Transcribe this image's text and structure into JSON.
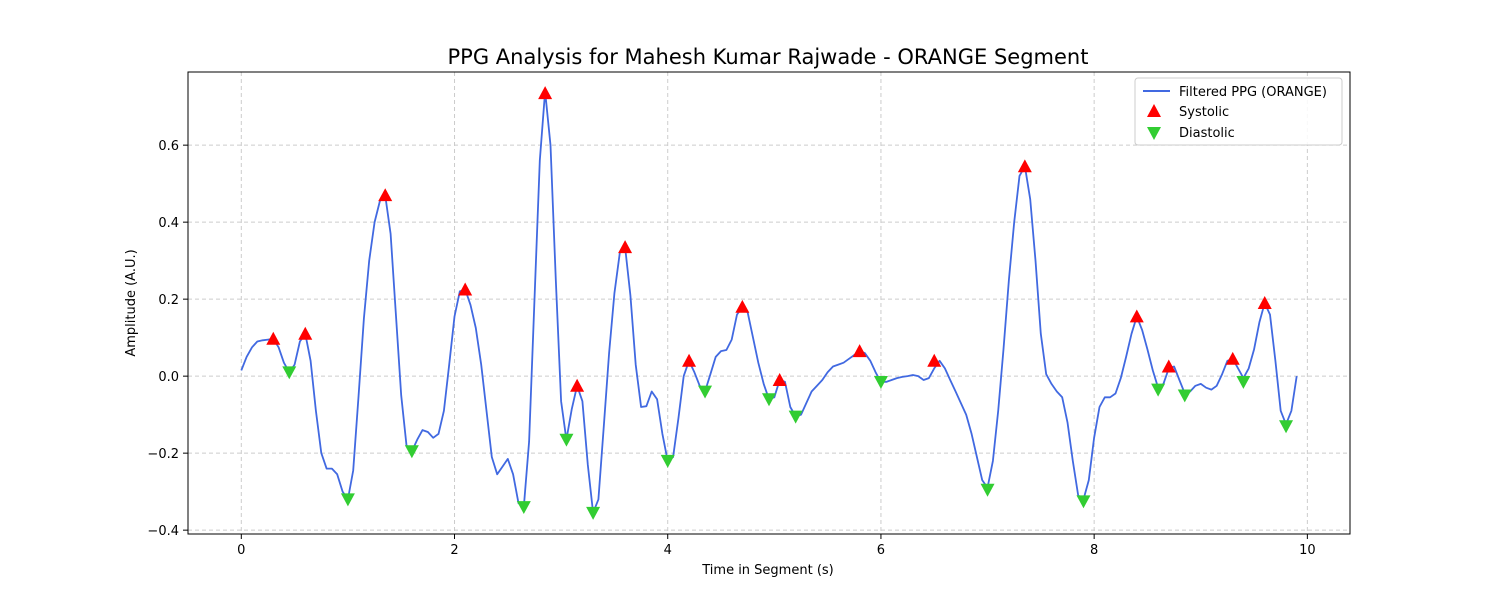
{
  "chart_data": {
    "type": "line",
    "title": "PPG Analysis for Mahesh Kumar Rajwade - ORANGE Segment",
    "xlabel": "Time in Segment (s)",
    "ylabel": "Amplitude (A.U.)",
    "xlim": [
      -0.5,
      10.4
    ],
    "ylim": [
      -0.41,
      0.79
    ],
    "xticks": [
      0,
      2,
      4,
      6,
      8,
      10
    ],
    "yticks": [
      -0.4,
      -0.2,
      0.0,
      0.2,
      0.4,
      0.6
    ],
    "ytick_labels": [
      "−0.4",
      "−0.2",
      "0.0",
      "0.2",
      "0.4",
      "0.6"
    ],
    "grid": true,
    "legend_position": "top-right",
    "colors": {
      "line": "#4169e1",
      "systolic": "#ff0000",
      "diastolic": "#32cd32"
    },
    "series": [
      {
        "name": "Filtered PPG (ORANGE)",
        "kind": "line",
        "points": [
          [
            0.0,
            0.015
          ],
          [
            0.05,
            0.05
          ],
          [
            0.1,
            0.075
          ],
          [
            0.15,
            0.09
          ],
          [
            0.2,
            0.093
          ],
          [
            0.25,
            0.095
          ],
          [
            0.3,
            0.097
          ],
          [
            0.35,
            0.075
          ],
          [
            0.4,
            0.035
          ],
          [
            0.45,
            0.01
          ],
          [
            0.5,
            0.03
          ],
          [
            0.55,
            0.09
          ],
          [
            0.6,
            0.11
          ],
          [
            0.65,
            0.04
          ],
          [
            0.7,
            -0.09
          ],
          [
            0.75,
            -0.2
          ],
          [
            0.8,
            -0.24
          ],
          [
            0.85,
            -0.24
          ],
          [
            0.9,
            -0.255
          ],
          [
            0.95,
            -0.3
          ],
          [
            1.0,
            -0.32
          ],
          [
            1.05,
            -0.245
          ],
          [
            1.1,
            -0.05
          ],
          [
            1.15,
            0.15
          ],
          [
            1.2,
            0.3
          ],
          [
            1.25,
            0.4
          ],
          [
            1.3,
            0.455
          ],
          [
            1.35,
            0.47
          ],
          [
            1.4,
            0.37
          ],
          [
            1.45,
            0.16
          ],
          [
            1.5,
            -0.05
          ],
          [
            1.55,
            -0.18
          ],
          [
            1.6,
            -0.195
          ],
          [
            1.65,
            -0.165
          ],
          [
            1.7,
            -0.14
          ],
          [
            1.75,
            -0.145
          ],
          [
            1.8,
            -0.16
          ],
          [
            1.85,
            -0.15
          ],
          [
            1.9,
            -0.09
          ],
          [
            1.95,
            0.03
          ],
          [
            2.0,
            0.155
          ],
          [
            2.05,
            0.22
          ],
          [
            2.1,
            0.225
          ],
          [
            2.15,
            0.185
          ],
          [
            2.2,
            0.125
          ],
          [
            2.25,
            0.03
          ],
          [
            2.3,
            -0.09
          ],
          [
            2.35,
            -0.21
          ],
          [
            2.4,
            -0.255
          ],
          [
            2.45,
            -0.235
          ],
          [
            2.5,
            -0.215
          ],
          [
            2.55,
            -0.255
          ],
          [
            2.6,
            -0.33
          ],
          [
            2.65,
            -0.34
          ],
          [
            2.7,
            -0.17
          ],
          [
            2.75,
            0.2
          ],
          [
            2.8,
            0.56
          ],
          [
            2.85,
            0.74
          ],
          [
            2.9,
            0.6
          ],
          [
            2.95,
            0.25
          ],
          [
            3.0,
            -0.065
          ],
          [
            3.05,
            -0.165
          ],
          [
            3.1,
            -0.085
          ],
          [
            3.15,
            -0.025
          ],
          [
            3.2,
            -0.065
          ],
          [
            3.25,
            -0.23
          ],
          [
            3.3,
            -0.355
          ],
          [
            3.35,
            -0.32
          ],
          [
            3.4,
            -0.13
          ],
          [
            3.45,
            0.06
          ],
          [
            3.5,
            0.215
          ],
          [
            3.55,
            0.32
          ],
          [
            3.6,
            0.335
          ],
          [
            3.65,
            0.21
          ],
          [
            3.7,
            0.03
          ],
          [
            3.75,
            -0.08
          ],
          [
            3.8,
            -0.078
          ],
          [
            3.85,
            -0.04
          ],
          [
            3.9,
            -0.06
          ],
          [
            3.95,
            -0.15
          ],
          [
            4.0,
            -0.22
          ],
          [
            4.05,
            -0.21
          ],
          [
            4.1,
            -0.11
          ],
          [
            4.15,
            0.0
          ],
          [
            4.2,
            0.04
          ],
          [
            4.25,
            0.01
          ],
          [
            4.3,
            -0.025
          ],
          [
            4.35,
            -0.04
          ],
          [
            4.4,
            0.005
          ],
          [
            4.45,
            0.05
          ],
          [
            4.5,
            0.065
          ],
          [
            4.55,
            0.068
          ],
          [
            4.6,
            0.095
          ],
          [
            4.65,
            0.16
          ],
          [
            4.7,
            0.18
          ],
          [
            4.75,
            0.165
          ],
          [
            4.8,
            0.1
          ],
          [
            4.85,
            0.035
          ],
          [
            4.9,
            -0.02
          ],
          [
            4.95,
            -0.06
          ],
          [
            5.0,
            -0.055
          ],
          [
            5.05,
            -0.01
          ],
          [
            5.1,
            -0.015
          ],
          [
            5.15,
            -0.08
          ],
          [
            5.2,
            -0.105
          ],
          [
            5.25,
            -0.1
          ],
          [
            5.3,
            -0.07
          ],
          [
            5.35,
            -0.04
          ],
          [
            5.4,
            -0.025
          ],
          [
            5.45,
            -0.01
          ],
          [
            5.5,
            0.01
          ],
          [
            5.55,
            0.025
          ],
          [
            5.6,
            0.03
          ],
          [
            5.65,
            0.035
          ],
          [
            5.7,
            0.045
          ],
          [
            5.75,
            0.055
          ],
          [
            5.8,
            0.065
          ],
          [
            5.85,
            0.06
          ],
          [
            5.9,
            0.04
          ],
          [
            5.95,
            0.01
          ],
          [
            6.0,
            -0.015
          ],
          [
            6.05,
            -0.015
          ],
          [
            6.1,
            -0.01
          ],
          [
            6.15,
            -0.005
          ],
          [
            6.2,
            -0.002
          ],
          [
            6.25,
            0.0
          ],
          [
            6.3,
            0.003
          ],
          [
            6.35,
            0.0
          ],
          [
            6.4,
            -0.01
          ],
          [
            6.45,
            -0.005
          ],
          [
            6.5,
            0.02
          ],
          [
            6.55,
            0.04
          ],
          [
            6.6,
            0.02
          ],
          [
            6.65,
            -0.01
          ],
          [
            6.7,
            -0.04
          ],
          [
            6.75,
            -0.07
          ],
          [
            6.8,
            -0.1
          ],
          [
            6.85,
            -0.15
          ],
          [
            6.9,
            -0.21
          ],
          [
            6.95,
            -0.27
          ],
          [
            7.0,
            -0.29
          ],
          [
            7.05,
            -0.22
          ],
          [
            7.1,
            -0.09
          ],
          [
            7.15,
            0.07
          ],
          [
            7.2,
            0.25
          ],
          [
            7.25,
            0.4
          ],
          [
            7.3,
            0.52
          ],
          [
            7.35,
            0.545
          ],
          [
            7.4,
            0.46
          ],
          [
            7.45,
            0.3
          ],
          [
            7.5,
            0.11
          ],
          [
            7.55,
            0.005
          ],
          [
            7.6,
            -0.02
          ],
          [
            7.65,
            -0.04
          ],
          [
            7.7,
            -0.055
          ],
          [
            7.75,
            -0.12
          ],
          [
            7.8,
            -0.22
          ],
          [
            7.85,
            -0.31
          ],
          [
            7.9,
            -0.32
          ],
          [
            7.95,
            -0.27
          ],
          [
            8.0,
            -0.16
          ],
          [
            8.05,
            -0.08
          ],
          [
            8.1,
            -0.055
          ],
          [
            8.15,
            -0.055
          ],
          [
            8.2,
            -0.045
          ],
          [
            8.25,
            -0.005
          ],
          [
            8.3,
            0.05
          ],
          [
            8.35,
            0.11
          ],
          [
            8.4,
            0.155
          ],
          [
            8.45,
            0.12
          ],
          [
            8.5,
            0.07
          ],
          [
            8.55,
            0.015
          ],
          [
            8.6,
            -0.03
          ],
          [
            8.65,
            -0.02
          ],
          [
            8.7,
            0.02
          ],
          [
            8.75,
            0.025
          ],
          [
            8.8,
            -0.01
          ],
          [
            8.85,
            -0.045
          ],
          [
            8.9,
            -0.04
          ],
          [
            8.95,
            -0.025
          ],
          [
            9.0,
            -0.02
          ],
          [
            9.05,
            -0.03
          ],
          [
            9.1,
            -0.035
          ],
          [
            9.15,
            -0.025
          ],
          [
            9.2,
            0.005
          ],
          [
            9.25,
            0.04
          ],
          [
            9.3,
            0.045
          ],
          [
            9.35,
            0.02
          ],
          [
            9.4,
            -0.005
          ],
          [
            9.45,
            0.02
          ],
          [
            9.5,
            0.07
          ],
          [
            9.55,
            0.14
          ],
          [
            9.6,
            0.19
          ],
          [
            9.65,
            0.16
          ],
          [
            9.7,
            0.04
          ],
          [
            9.75,
            -0.09
          ],
          [
            9.8,
            -0.125
          ],
          [
            9.85,
            -0.09
          ],
          [
            9.9,
            0.0
          ]
        ]
      },
      {
        "name": "Systolic",
        "kind": "marker-up",
        "points": [
          [
            0.3,
            0.097
          ],
          [
            0.6,
            0.11
          ],
          [
            1.35,
            0.47
          ],
          [
            2.1,
            0.225
          ],
          [
            2.85,
            0.735
          ],
          [
            3.15,
            -0.025
          ],
          [
            3.6,
            0.335
          ],
          [
            4.2,
            0.04
          ],
          [
            4.7,
            0.18
          ],
          [
            5.05,
            -0.01
          ],
          [
            5.8,
            0.065
          ],
          [
            6.5,
            0.04
          ],
          [
            7.35,
            0.545
          ],
          [
            8.4,
            0.155
          ],
          [
            8.7,
            0.025
          ],
          [
            9.3,
            0.045
          ],
          [
            9.6,
            0.19
          ]
        ]
      },
      {
        "name": "Diastolic",
        "kind": "marker-down",
        "points": [
          [
            0.45,
            0.01
          ],
          [
            1.0,
            -0.32
          ],
          [
            1.6,
            -0.195
          ],
          [
            2.65,
            -0.34
          ],
          [
            3.05,
            -0.165
          ],
          [
            3.3,
            -0.355
          ],
          [
            4.0,
            -0.22
          ],
          [
            4.35,
            -0.04
          ],
          [
            4.95,
            -0.06
          ],
          [
            5.2,
            -0.105
          ],
          [
            6.0,
            -0.015
          ],
          [
            7.0,
            -0.295
          ],
          [
            7.9,
            -0.325
          ],
          [
            8.6,
            -0.035
          ],
          [
            8.85,
            -0.05
          ],
          [
            9.4,
            -0.015
          ],
          [
            9.8,
            -0.13
          ]
        ]
      }
    ]
  }
}
